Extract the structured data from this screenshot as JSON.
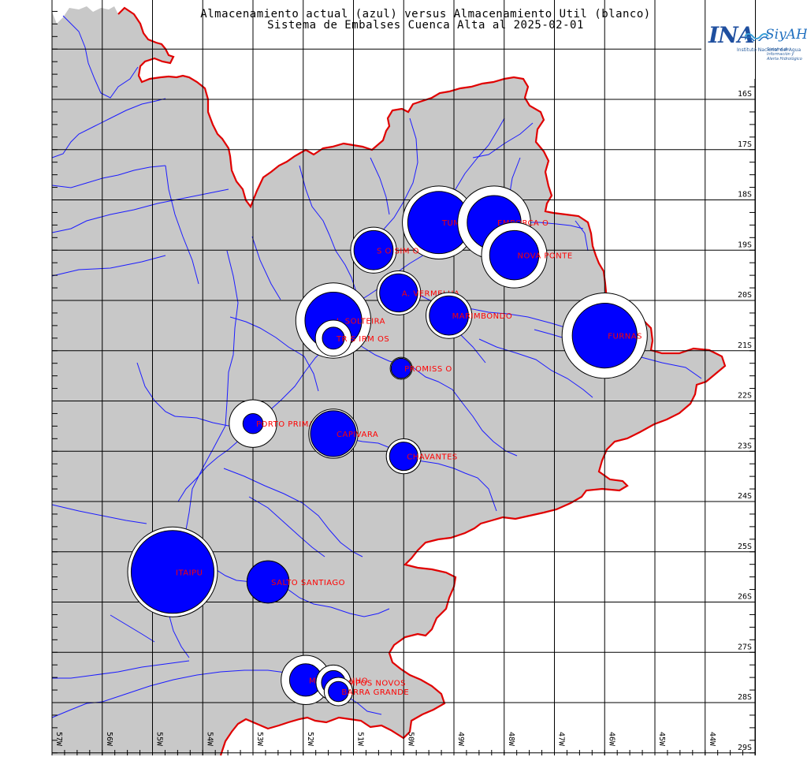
{
  "header": {
    "title_line1": "Almacenamiento actual (azul) versus Almacenamiento Util (blanco)",
    "title_line2": "Sistema de Embalses Cuenca Alta al 2025-02-01"
  },
  "logo": {
    "name": "INA",
    "system": "SiyAH",
    "subtitle": "Instituto Nacional del Agua",
    "system_subtitle": "Sistema de Información y Alerta Hidrológico"
  },
  "map": {
    "lon_labels": [
      "57W",
      "56W",
      "55W",
      "54W",
      "53W",
      "52W",
      "51W",
      "50W",
      "49W",
      "48W",
      "47W",
      "46W",
      "45W",
      "44W"
    ],
    "lat_labels": [
      "16S",
      "17S",
      "18S",
      "19S",
      "20S",
      "21S",
      "22S",
      "23S",
      "24S",
      "25S",
      "26S",
      "27S",
      "28S",
      "29S"
    ],
    "colors": {
      "basin": "#c8c8c8",
      "boundary": "#e00000",
      "river": "#1c1cff",
      "grid": "#000000",
      "current_storage": "#0000ff",
      "useful_storage": "#ffffff",
      "label": "#ff0000"
    },
    "reservoirs": [
      {
        "label": "ITAIPU",
        "util": 1.0,
        "current": 0.85,
        "lon": -54.6,
        "lat": -25.4
      },
      {
        "label": "FURNAS",
        "util": 0.9,
        "current": 0.52,
        "lon": -46.0,
        "lat": -20.7
      },
      {
        "label": "TUMBIARA",
        "util": 0.66,
        "current": 0.48,
        "lon": -49.3,
        "lat": -18.45
      },
      {
        "label": "EMBORCA  O",
        "util": 0.66,
        "current": 0.36,
        "lon": -48.2,
        "lat": -18.45
      },
      {
        "label": "NOVA PONTE",
        "util": 0.53,
        "current": 0.3,
        "lon": -47.8,
        "lat": -19.1
      },
      {
        "label": "I. SOLTEIRA",
        "util": 0.7,
        "current": 0.4,
        "lon": -51.4,
        "lat": -20.4
      },
      {
        "label": "TR S IRM OS",
        "util": 0.16,
        "current": 0.06,
        "lon": -51.4,
        "lat": -20.75
      },
      {
        "label": "S O SIM O",
        "util": 0.26,
        "current": 0.19,
        "lon": -50.6,
        "lat": -19.0
      },
      {
        "label": "A. VERMELHA",
        "util": 0.24,
        "current": 0.18,
        "lon": -50.1,
        "lat": -19.85
      },
      {
        "label": "MARIMBONDO",
        "util": 0.26,
        "current": 0.19,
        "lon": -49.1,
        "lat": -20.3
      },
      {
        "label": "PROMISS O",
        "util": 0.06,
        "current": 0.05,
        "lon": -50.05,
        "lat": -21.35
      },
      {
        "label": "PORTO PRIMAVERA",
        "util": 0.28,
        "current": 0.05,
        "lon": -53.0,
        "lat": -22.45
      },
      {
        "label": "CAPIVARA",
        "util": 0.3,
        "current": 0.26,
        "lon": -51.4,
        "lat": -22.65
      },
      {
        "label": "CHAVANTES",
        "util": 0.15,
        "current": 0.1,
        "lon": -50.0,
        "lat": -23.1
      },
      {
        "label": "SALTO SANTIAGO",
        "util": 0.22,
        "current": 0.22,
        "lon": -52.7,
        "lat": -25.6
      },
      {
        "label": "MACHADINHO",
        "util": 0.3,
        "current": 0.13,
        "lon": -51.95,
        "lat": -27.55
      },
      {
        "label": "CAMPOS NOVOS",
        "util": 0.15,
        "current": 0.07,
        "lon": -51.4,
        "lat": -27.6
      },
      {
        "label": "BARRA GRANDE",
        "util": 0.1,
        "current": 0.05,
        "lon": -51.3,
        "lat": -27.78
      }
    ]
  }
}
